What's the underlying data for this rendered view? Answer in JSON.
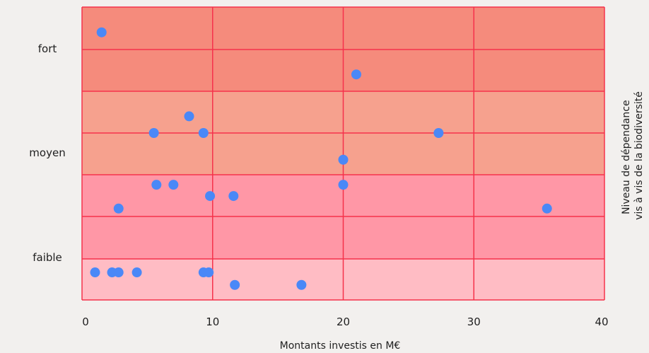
{
  "chart_data": {
    "type": "scatter",
    "xlabel": "Montants investis en M€",
    "ylabel_lines": [
      "Niveau de dépendance",
      "vis à vis de la biodiversité"
    ],
    "xlim": [
      0,
      40
    ],
    "x_ticks": [
      {
        "value": 0,
        "label": "0"
      },
      {
        "value": 10,
        "label": "10"
      },
      {
        "value": 20,
        "label": "20"
      },
      {
        "value": 30,
        "label": "30"
      },
      {
        "value": 40,
        "label": "40"
      }
    ],
    "y_categories": [
      "faible",
      "moyen",
      "fort"
    ],
    "grid": true,
    "band_colors": {
      "fort": "#f58b7c",
      "moyen": "#f6a18e",
      "faible_upper": "#ff97a6",
      "faible_lower": "#ffbcc4"
    },
    "grid_color": "#f5324b",
    "point_color": "#4a88f7",
    "background_color": "#f2f0ee",
    "points": [
      {
        "x": 1.5,
        "level": "fort",
        "position": 0.7
      },
      {
        "x": 21.0,
        "level": "fort",
        "position": 0.2
      },
      {
        "x": 8.2,
        "level": "moyen",
        "position": 0.7
      },
      {
        "x": 5.5,
        "level": "moyen",
        "position": 0.5
      },
      {
        "x": 9.3,
        "level": "moyen",
        "position": 0.5
      },
      {
        "x": 27.3,
        "level": "moyen",
        "position": 0.5
      },
      {
        "x": 20.0,
        "level": "faible",
        "position": 1.12
      },
      {
        "x": 5.7,
        "level": "faible",
        "position": 0.92
      },
      {
        "x": 7.0,
        "level": "faible",
        "position": 0.92
      },
      {
        "x": 20.0,
        "level": "faible",
        "position": 0.92
      },
      {
        "x": 9.8,
        "level": "faible",
        "position": 0.83
      },
      {
        "x": 11.6,
        "level": "faible",
        "position": 0.83
      },
      {
        "x": 2.8,
        "level": "faible",
        "position": 0.73
      },
      {
        "x": 35.6,
        "level": "faible",
        "position": 0.73
      },
      {
        "x": 1.0,
        "level": "faible",
        "position": 0.22
      },
      {
        "x": 2.3,
        "level": "faible",
        "position": 0.22
      },
      {
        "x": 2.8,
        "level": "faible",
        "position": 0.22
      },
      {
        "x": 4.2,
        "level": "faible",
        "position": 0.22
      },
      {
        "x": 9.3,
        "level": "faible",
        "position": 0.22
      },
      {
        "x": 9.7,
        "level": "faible",
        "position": 0.22
      },
      {
        "x": 11.7,
        "level": "faible",
        "position": 0.12
      },
      {
        "x": 16.8,
        "level": "faible",
        "position": 0.12
      }
    ]
  }
}
